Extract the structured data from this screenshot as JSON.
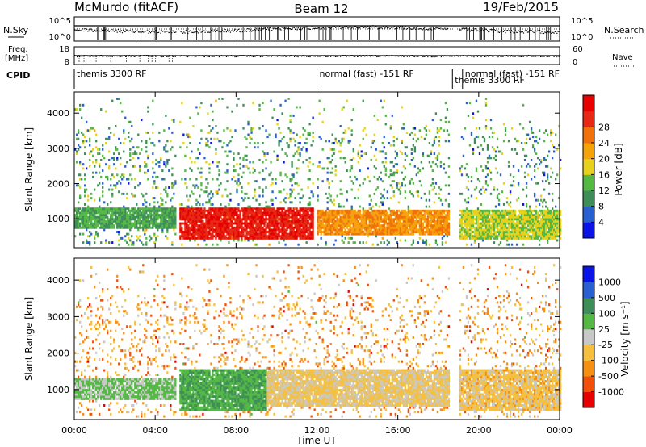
{
  "header": {
    "station": "McMurdo (fitACF)",
    "beam": "Beam 12",
    "date": "19/Feb/2015"
  },
  "strips": {
    "nsky_label": "N.Sky",
    "nsky_ticks": [
      "10^5",
      "10^0"
    ],
    "nsearch_label": "N.Search",
    "nsearch_ticks": [
      "10^5",
      "10^0"
    ],
    "freq_label_1": "Freq.",
    "freq_label_2": "[MHz]",
    "freq_ticks": [
      "18",
      "8"
    ],
    "nave_label": "Nave",
    "nave_ticks": [
      "60",
      "0"
    ],
    "cpid_label": "CPID",
    "cpid_segments": [
      {
        "label": "themis 3300 RF",
        "start_h": 0,
        "end_h": 12
      },
      {
        "label": "normal (fast) -151 RF",
        "start_h": 12,
        "end_h": 18.7
      },
      {
        "label": "themis 3300 RF",
        "start_h": 18.7,
        "end_h": 19.2
      },
      {
        "label": "normal (fast) -151 RF",
        "start_h": 19.2,
        "end_h": 24
      }
    ]
  },
  "xaxis": {
    "label": "Time UT",
    "ticks": [
      "00:00",
      "04:00",
      "08:00",
      "12:00",
      "16:00",
      "20:00",
      "00:00"
    ]
  },
  "panels": [
    {
      "ylabel": "Slant Range [km]",
      "yticks": [
        "1000",
        "2000",
        "3000",
        "4000"
      ],
      "colorbar_label": "Power [dB]",
      "colorbar_ticks": [
        "4",
        "8",
        "12",
        "16",
        "20",
        "24",
        "28"
      ],
      "colors": [
        "#0a14e6",
        "#2a5fd0",
        "#3f8e5a",
        "#55b845",
        "#e6d21e",
        "#f5a30c",
        "#f0700a",
        "#e62814",
        "#e60000"
      ]
    },
    {
      "ylabel": "Slant Range [km]",
      "yticks": [
        "1000",
        "2000",
        "3000",
        "4000"
      ],
      "colorbar_label": "Velocity [m s⁻¹]",
      "colorbar_ticks": [
        "-1000",
        "-500",
        "-100",
        "-25",
        "25",
        "100",
        "500",
        "1000"
      ],
      "colors": [
        "#e60000",
        "#f0500a",
        "#f59015",
        "#f5c040",
        "#c8c8c8",
        "#55b845",
        "#3f8e5a",
        "#2a5fd0",
        "#0a14e6"
      ]
    }
  ],
  "chart_data": [
    {
      "type": "heatmap",
      "title": "McMurdo (fitACF) Beam 12 19/Feb/2015",
      "xlabel": "Time UT",
      "ylabel": "Slant Range [km]",
      "xlim_hours": [
        0,
        24
      ],
      "ylim_km": [
        180,
        4600
      ],
      "value_label": "Power [dB]",
      "value_range": [
        0,
        30
      ],
      "bands": [
        {
          "t_start": 0.0,
          "t_end": 5.0,
          "range_start": 700,
          "range_end": 1300,
          "value": 10
        },
        {
          "t_start": 5.2,
          "t_end": 11.8,
          "range_start": 400,
          "range_end": 1300,
          "value": 26
        },
        {
          "t_start": 12.0,
          "t_end": 18.5,
          "range_start": 500,
          "range_end": 1200,
          "value": 20
        },
        {
          "t_start": 19.0,
          "t_end": 24.0,
          "range_start": 400,
          "range_end": 1200,
          "value": 14
        }
      ]
    },
    {
      "type": "heatmap",
      "title": "",
      "xlabel": "Time UT",
      "ylabel": "Slant Range [km]",
      "xlim_hours": [
        0,
        24
      ],
      "ylim_km": [
        180,
        4600
      ],
      "value_label": "Velocity [m s⁻¹]",
      "value_range": [
        -1000,
        1000
      ],
      "bands": [
        {
          "t_start": 0.0,
          "t_end": 5.0,
          "range_start": 700,
          "range_end": 1300,
          "value": 150
        },
        {
          "t_start": 5.2,
          "t_end": 9.5,
          "range_start": 400,
          "range_end": 1500,
          "value": 300
        },
        {
          "t_start": 9.5,
          "t_end": 18.5,
          "range_start": 500,
          "range_end": 1500,
          "value": -150
        },
        {
          "t_start": 19.0,
          "t_end": 24.0,
          "range_start": 400,
          "range_end": 1500,
          "value": -200
        }
      ]
    }
  ]
}
